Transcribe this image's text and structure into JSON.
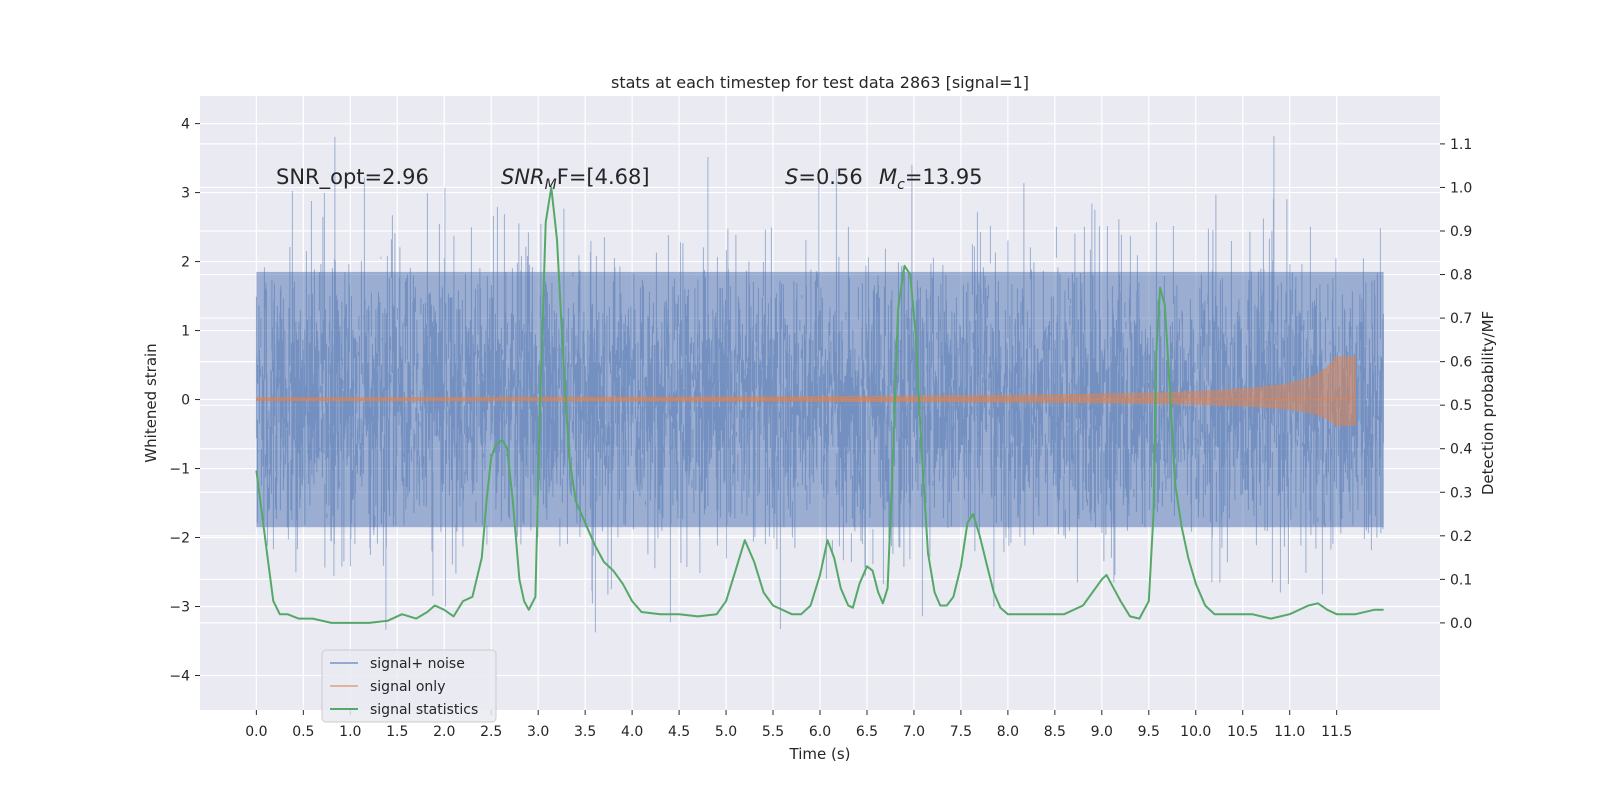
{
  "chart_data": {
    "type": "line",
    "title": "stats at each timestep for test data 2863 [signal=1]",
    "xlabel": "Time (s)",
    "ylabel_left": "Whitened strain",
    "ylabel_right": "Detection probability/MF",
    "xlim": [
      -0.6,
      12.6
    ],
    "ylim_left": [
      -4.5,
      4.4
    ],
    "ylim_right": [
      -0.2,
      1.21
    ],
    "x_ticks": [
      0.0,
      0.5,
      1.0,
      1.5,
      2.0,
      2.5,
      3.0,
      3.5,
      4.0,
      4.5,
      5.0,
      5.5,
      6.0,
      6.5,
      7.0,
      7.5,
      8.0,
      8.5,
      9.0,
      9.5,
      10.0,
      10.5,
      11.0,
      11.5
    ],
    "x_tick_labels": [
      "0.0",
      "0.5",
      "1.0",
      "1.5",
      "2.0",
      "2.5",
      "3.0",
      "3.5",
      "4.0",
      "4.5",
      "5.0",
      "5.5",
      "6.0",
      "6.5",
      "7.0",
      "7.5",
      "8.0",
      "8.5",
      "9.0",
      "9.5",
      "10.0",
      "10.5",
      "11.0",
      "11.5"
    ],
    "y_left_ticks": [
      -4,
      -3,
      -2,
      -1,
      0,
      1,
      2,
      3,
      4
    ],
    "y_left_tick_labels": [
      "−4",
      "−3",
      "−2",
      "−1",
      "0",
      "1",
      "2",
      "3",
      "4"
    ],
    "y_right_ticks": [
      0.0,
      0.1,
      0.2,
      0.3,
      0.4,
      0.5,
      0.6,
      0.7,
      0.8,
      0.9,
      1.0,
      1.1
    ],
    "y_right_tick_labels": [
      "0.0",
      "0.1",
      "0.2",
      "0.3",
      "0.4",
      "0.5",
      "0.6",
      "0.7",
      "0.8",
      "0.9",
      "1.0",
      "1.1"
    ],
    "grid": true,
    "legend_position": "lower-left",
    "annotations": {
      "snr_opt": "SNR_opt=2.96",
      "snr_mf_main": "SNR",
      "snr_mf_sub": "M",
      "snr_mf_rest": "F=[4.68]",
      "s_sym": "S",
      "s_val": "=0.56",
      "mc_sym": "M",
      "mc_sub": "c",
      "mc_val": "=13.95"
    },
    "series": [
      {
        "name": "signal+ noise",
        "color": "#4c72b0",
        "axis": "left",
        "x_range": [
          0.0,
          12.0
        ],
        "sigma": 1.0,
        "peak_abs": 4.0,
        "note_values": "dense noise samples, approx N(0,1)"
      },
      {
        "name": "signal only",
        "color": "#dd8452",
        "axis": "left",
        "x_range": [
          0.0,
          11.7
        ],
        "peak_abs": 0.62
      },
      {
        "name": "signal statistics",
        "color": "#55a868",
        "axis": "right",
        "x": [
          0.0,
          0.06,
          0.12,
          0.18,
          0.25,
          0.33,
          0.45,
          0.6,
          0.8,
          1.0,
          1.2,
          1.4,
          1.55,
          1.7,
          1.82,
          1.9,
          2.0,
          2.1,
          2.2,
          2.3,
          2.4,
          2.45,
          2.5,
          2.55,
          2.62,
          2.67,
          2.73,
          2.8,
          2.85,
          2.9,
          2.97,
          3.02,
          3.08,
          3.14,
          3.2,
          3.27,
          3.33,
          3.4,
          3.5,
          3.6,
          3.7,
          3.8,
          3.9,
          4.0,
          4.1,
          4.3,
          4.5,
          4.7,
          4.9,
          5.0,
          5.1,
          5.2,
          5.3,
          5.4,
          5.5,
          5.6,
          5.7,
          5.8,
          5.9,
          6.0,
          6.08,
          6.15,
          6.22,
          6.3,
          6.35,
          6.42,
          6.5,
          6.56,
          6.62,
          6.67,
          6.72,
          6.78,
          6.83,
          6.9,
          6.96,
          7.02,
          7.08,
          7.15,
          7.22,
          7.28,
          7.35,
          7.42,
          7.5,
          7.57,
          7.63,
          7.7,
          7.78,
          7.85,
          7.92,
          8.0,
          8.2,
          8.4,
          8.6,
          8.8,
          9.0,
          9.05,
          9.1,
          9.2,
          9.3,
          9.4,
          9.5,
          9.55,
          9.58,
          9.62,
          9.67,
          9.72,
          9.78,
          9.85,
          9.92,
          10.0,
          10.1,
          10.2,
          10.4,
          10.6,
          10.8,
          11.0,
          11.2,
          11.3,
          11.4,
          11.5,
          11.7,
          11.9,
          12.0
        ],
        "values": [
          0.35,
          0.25,
          0.15,
          0.05,
          0.02,
          0.02,
          0.01,
          0.01,
          0.0,
          0.0,
          0.0,
          0.005,
          0.02,
          0.01,
          0.025,
          0.04,
          0.03,
          0.015,
          0.05,
          0.06,
          0.15,
          0.28,
          0.38,
          0.41,
          0.42,
          0.4,
          0.28,
          0.1,
          0.05,
          0.03,
          0.06,
          0.5,
          0.92,
          1.0,
          0.88,
          0.6,
          0.38,
          0.28,
          0.23,
          0.18,
          0.14,
          0.12,
          0.09,
          0.05,
          0.025,
          0.02,
          0.02,
          0.015,
          0.02,
          0.05,
          0.12,
          0.19,
          0.14,
          0.07,
          0.04,
          0.03,
          0.02,
          0.02,
          0.04,
          0.11,
          0.19,
          0.15,
          0.08,
          0.04,
          0.035,
          0.09,
          0.13,
          0.12,
          0.07,
          0.045,
          0.08,
          0.4,
          0.72,
          0.82,
          0.8,
          0.66,
          0.4,
          0.16,
          0.07,
          0.04,
          0.04,
          0.06,
          0.13,
          0.23,
          0.25,
          0.2,
          0.13,
          0.07,
          0.035,
          0.02,
          0.02,
          0.02,
          0.02,
          0.04,
          0.1,
          0.11,
          0.09,
          0.05,
          0.015,
          0.01,
          0.05,
          0.25,
          0.62,
          0.77,
          0.73,
          0.55,
          0.32,
          0.22,
          0.15,
          0.09,
          0.04,
          0.02,
          0.02,
          0.02,
          0.01,
          0.02,
          0.04,
          0.045,
          0.03,
          0.02,
          0.02,
          0.03,
          0.03
        ]
      }
    ]
  }
}
